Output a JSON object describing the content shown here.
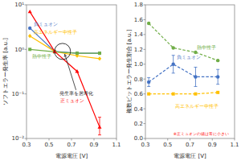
{
  "chart_data": [
    {
      "type": "line",
      "xlabel": "電源電圧 [V]",
      "ylabel": "ソフトエラー発生率 [a.u.]",
      "log": "y",
      "grid": false,
      "xlim": [
        0.3,
        1.1
      ],
      "xticks": [
        0.3,
        0.5,
        0.7,
        0.9,
        1.1
      ],
      "ylim": [
        0.01,
        10
      ],
      "yticks": [
        {
          "value": 0.01,
          "label": "10⁻²"
        },
        {
          "value": 0.1,
          "label": "10⁻¹"
        },
        {
          "value": 1,
          "label": "10⁰"
        },
        {
          "value": 10,
          "label": "10¹"
        }
      ],
      "x": [
        0.33,
        0.55,
        0.75,
        0.95
      ],
      "series": [
        {
          "name": "負ミュオン",
          "color": "#4472c4",
          "marker": "circle",
          "line_style": "solid",
          "values": [
            3.0,
            0.9,
            0.82,
            0.82
          ]
        },
        {
          "name": "高エネルギー中性子",
          "color": "#ffc000",
          "marker": "diamond",
          "line_style": "solid",
          "values": [
            2.0,
            0.9,
            0.72,
            0.62
          ]
        },
        {
          "name": "熱中性子",
          "color": "#70ad47",
          "marker": "square",
          "line_style": "solid",
          "values": [
            1.0,
            0.88,
            0.82,
            0.82
          ]
        },
        {
          "name": "正ミュオン",
          "color": "#ff0000",
          "marker": "triangle",
          "line_style": "solid",
          "values": [
            7.0,
            0.9,
            0.32,
            0.018
          ],
          "yerr_low": [
            null,
            null,
            null,
            0.006
          ],
          "yerr_high": [
            null,
            null,
            null,
            0.012
          ]
        }
      ],
      "highlight": {
        "x": 0.62,
        "y": 0.9
      },
      "annotations": [
        {
          "text": "発生率を居寿化",
          "x": 0.74,
          "y": 0.12,
          "arrow_x": 0.64,
          "arrow_y": 0.78
        }
      ]
    },
    {
      "type": "line",
      "xlabel": "電源電圧 [V]",
      "ylabel": "複数ビットエラー発生割合 [a.u.]",
      "grid": false,
      "xlim": [
        0.3,
        1.1
      ],
      "xticks": [
        0.3,
        0.5,
        0.7,
        0.9,
        1.1
      ],
      "ylim": [
        0.0,
        1.8
      ],
      "yticks": [
        {
          "value": 0.0,
          "label": "0.0"
        },
        0.2,
        0.4,
        0.6,
        0.8,
        {
          "value": 1.0,
          "label": "1.0"
        },
        1.2,
        1.4,
        1.6,
        1.8
      ],
      "x": [
        0.33,
        0.55,
        0.75,
        0.95
      ],
      "series": [
        {
          "name": "熱中性子",
          "color": "#70ad47",
          "marker": "circle",
          "line_style": "dashed",
          "values": [
            1.55,
            1.22,
            1.16,
            1.05
          ]
        },
        {
          "name": "負ミュオン",
          "color": "#4472c4",
          "marker": "circle",
          "line_style": "dashed",
          "values": [
            0.76,
            1.0,
            0.83,
            0.83
          ],
          "yerr": [
            0.06,
            0.12,
            0.13,
            0.1
          ]
        },
        {
          "name": "高エネルギー中性子",
          "color": "#ffc000",
          "marker": "square",
          "line_style": "dashed",
          "values": [
            0.6,
            0.6,
            0.6,
            0.62
          ]
        }
      ],
      "annotations": [
        {
          "text": "※正ミュオンの値は常に小さい",
          "color": "#ff0000"
        }
      ]
    }
  ]
}
